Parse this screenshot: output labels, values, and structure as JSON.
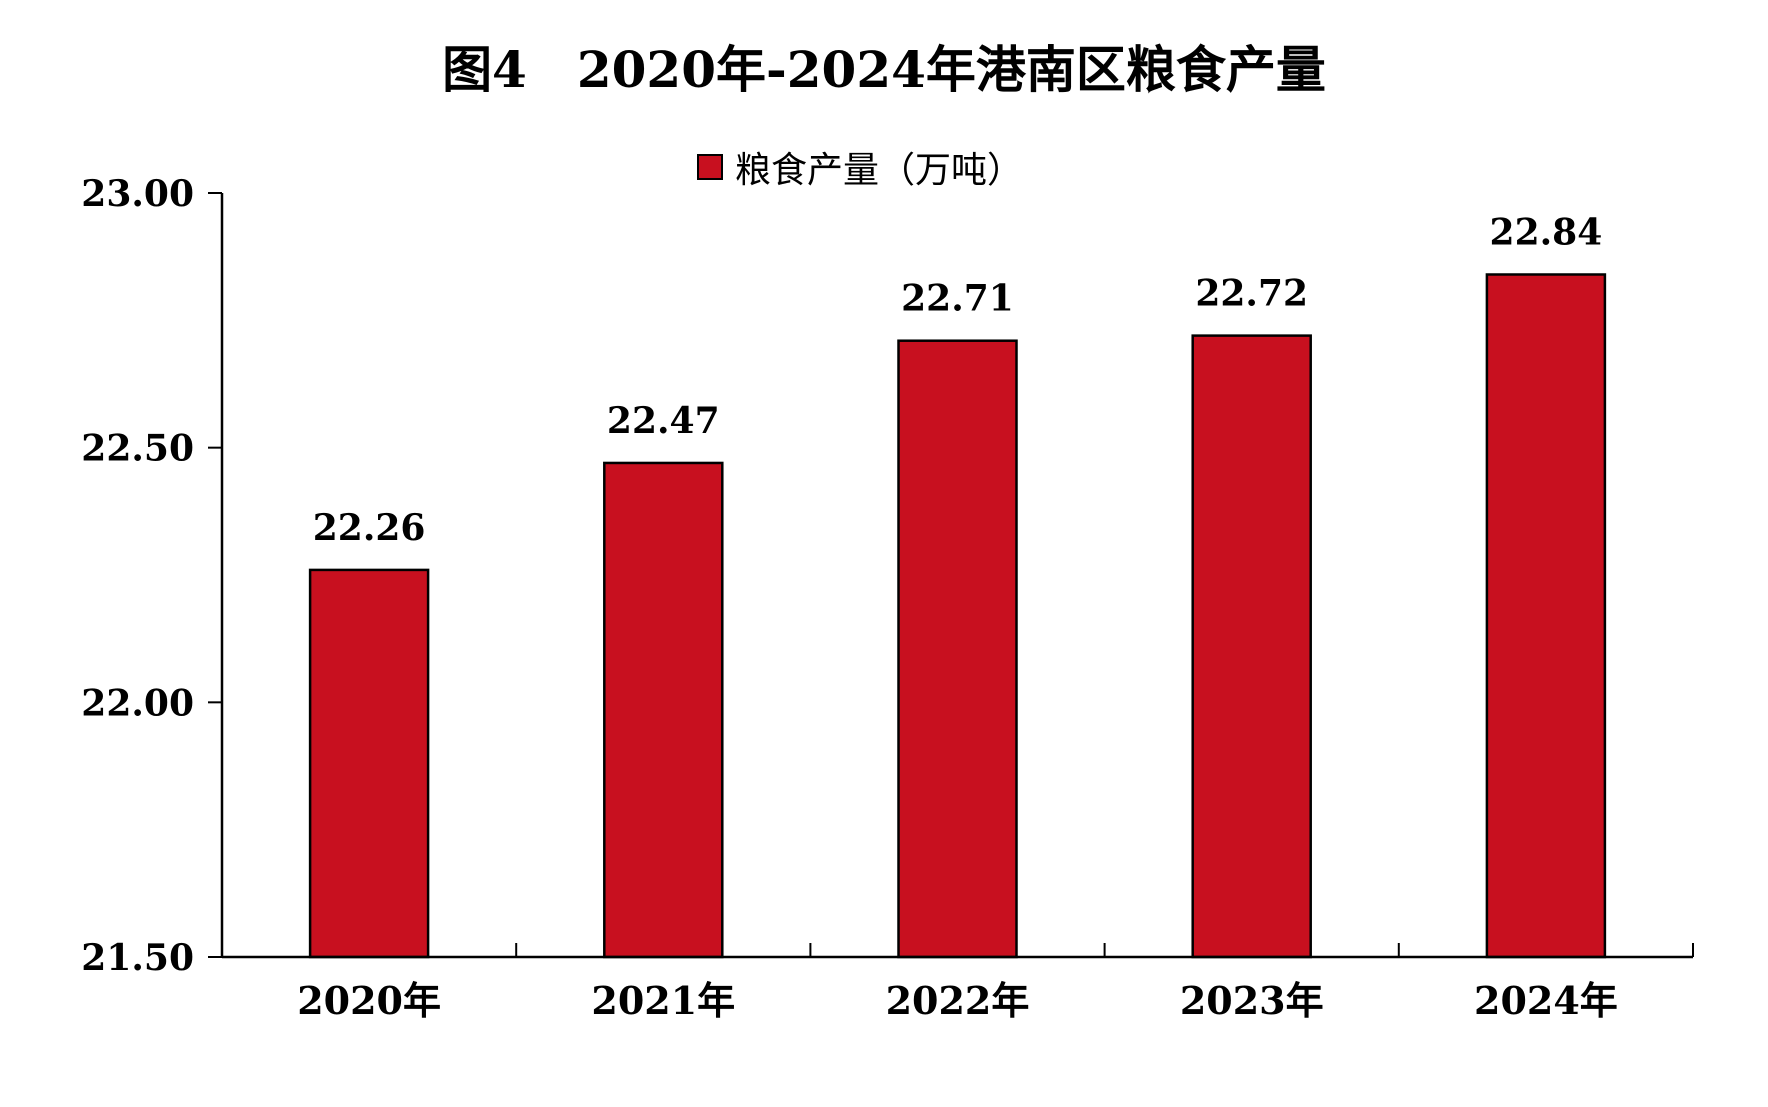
{
  "chart_data": {
    "type": "bar",
    "title": "图4　2020年-2024年港南区粮食产量",
    "categories": [
      "2020年",
      "2021年",
      "2022年",
      "2023年",
      "2024年"
    ],
    "series": [
      {
        "name": "粮食产量（万吨）",
        "values": [
          22.26,
          22.47,
          22.71,
          22.72,
          22.84
        ],
        "color": "#c8101f"
      }
    ],
    "data_labels": [
      "22.26",
      "22.47",
      "22.71",
      "22.72",
      "22.84"
    ],
    "ylim": [
      21.5,
      23.0
    ],
    "yticks": [
      21.5,
      22.0,
      22.5,
      23.0
    ],
    "ytick_labels": [
      "21.50",
      "22.00",
      "22.50",
      "23.00"
    ],
    "legend_position": "top-center",
    "grid": false,
    "xlabel": "",
    "ylabel": ""
  }
}
